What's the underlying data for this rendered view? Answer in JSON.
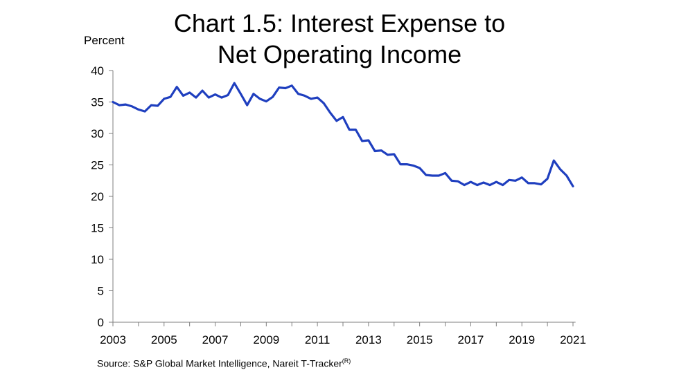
{
  "chart_data": {
    "type": "line",
    "title": "Chart 1.5: Interest Expense to Net Operating Income",
    "title_lines": [
      "Chart 1.5: Interest Expense to",
      "Net Operating Income"
    ],
    "ylabel": "Percent",
    "xlabel": "",
    "ylim": [
      0,
      40
    ],
    "xlim": [
      2003,
      2021.1
    ],
    "y_ticks": [
      0,
      5,
      10,
      15,
      20,
      25,
      30,
      35,
      40
    ],
    "x_ticks": [
      2003,
      2005,
      2007,
      2009,
      2011,
      2013,
      2015,
      2017,
      2019,
      2021
    ],
    "x_tick_labels": [
      "2003",
      "2005",
      "2007",
      "2009",
      "2011",
      "2013",
      "2015",
      "2017",
      "2019",
      "2021"
    ],
    "grid": false,
    "series": [
      {
        "name": "Interest Expense to Net Operating Income",
        "color": "#1f3fbf",
        "x": [
          2003.0,
          2003.25,
          2003.5,
          2003.75,
          2004.0,
          2004.25,
          2004.5,
          2004.75,
          2005.0,
          2005.25,
          2005.5,
          2005.75,
          2006.0,
          2006.25,
          2006.5,
          2006.75,
          2007.0,
          2007.25,
          2007.5,
          2007.75,
          2008.0,
          2008.25,
          2008.5,
          2008.75,
          2009.0,
          2009.25,
          2009.5,
          2009.75,
          2010.0,
          2010.25,
          2010.5,
          2010.75,
          2011.0,
          2011.25,
          2011.5,
          2011.75,
          2012.0,
          2012.25,
          2012.5,
          2012.75,
          2013.0,
          2013.25,
          2013.5,
          2013.75,
          2014.0,
          2014.25,
          2014.5,
          2014.75,
          2015.0,
          2015.25,
          2015.5,
          2015.75,
          2016.0,
          2016.25,
          2016.5,
          2016.75,
          2017.0,
          2017.25,
          2017.5,
          2017.75,
          2018.0,
          2018.25,
          2018.5,
          2018.75,
          2019.0,
          2019.25,
          2019.5,
          2019.75,
          2020.0,
          2020.25,
          2020.5,
          2020.75,
          2021.0
        ],
        "values": [
          35.0,
          34.5,
          34.6,
          34.3,
          33.8,
          33.5,
          34.5,
          34.4,
          35.5,
          35.8,
          37.4,
          36.0,
          36.5,
          35.7,
          36.8,
          35.7,
          36.2,
          35.7,
          36.1,
          38.0,
          36.3,
          34.5,
          36.3,
          35.5,
          35.1,
          35.8,
          37.3,
          37.2,
          37.6,
          36.3,
          36.0,
          35.5,
          35.7,
          34.8,
          33.3,
          32.0,
          32.6,
          30.6,
          30.6,
          28.8,
          28.9,
          27.2,
          27.3,
          26.6,
          26.7,
          25.1,
          25.1,
          24.9,
          24.5,
          23.4,
          23.3,
          23.3,
          23.7,
          22.5,
          22.4,
          21.8,
          22.3,
          21.8,
          22.2,
          21.8,
          22.3,
          21.8,
          22.6,
          22.5,
          23.0,
          22.1,
          22.1,
          21.9,
          22.8,
          25.7,
          24.3,
          23.3,
          21.6
        ]
      }
    ],
    "source": "Source: S&P Global Market Intelligence, Nareit T-Tracker",
    "source_mark": "(R)"
  }
}
